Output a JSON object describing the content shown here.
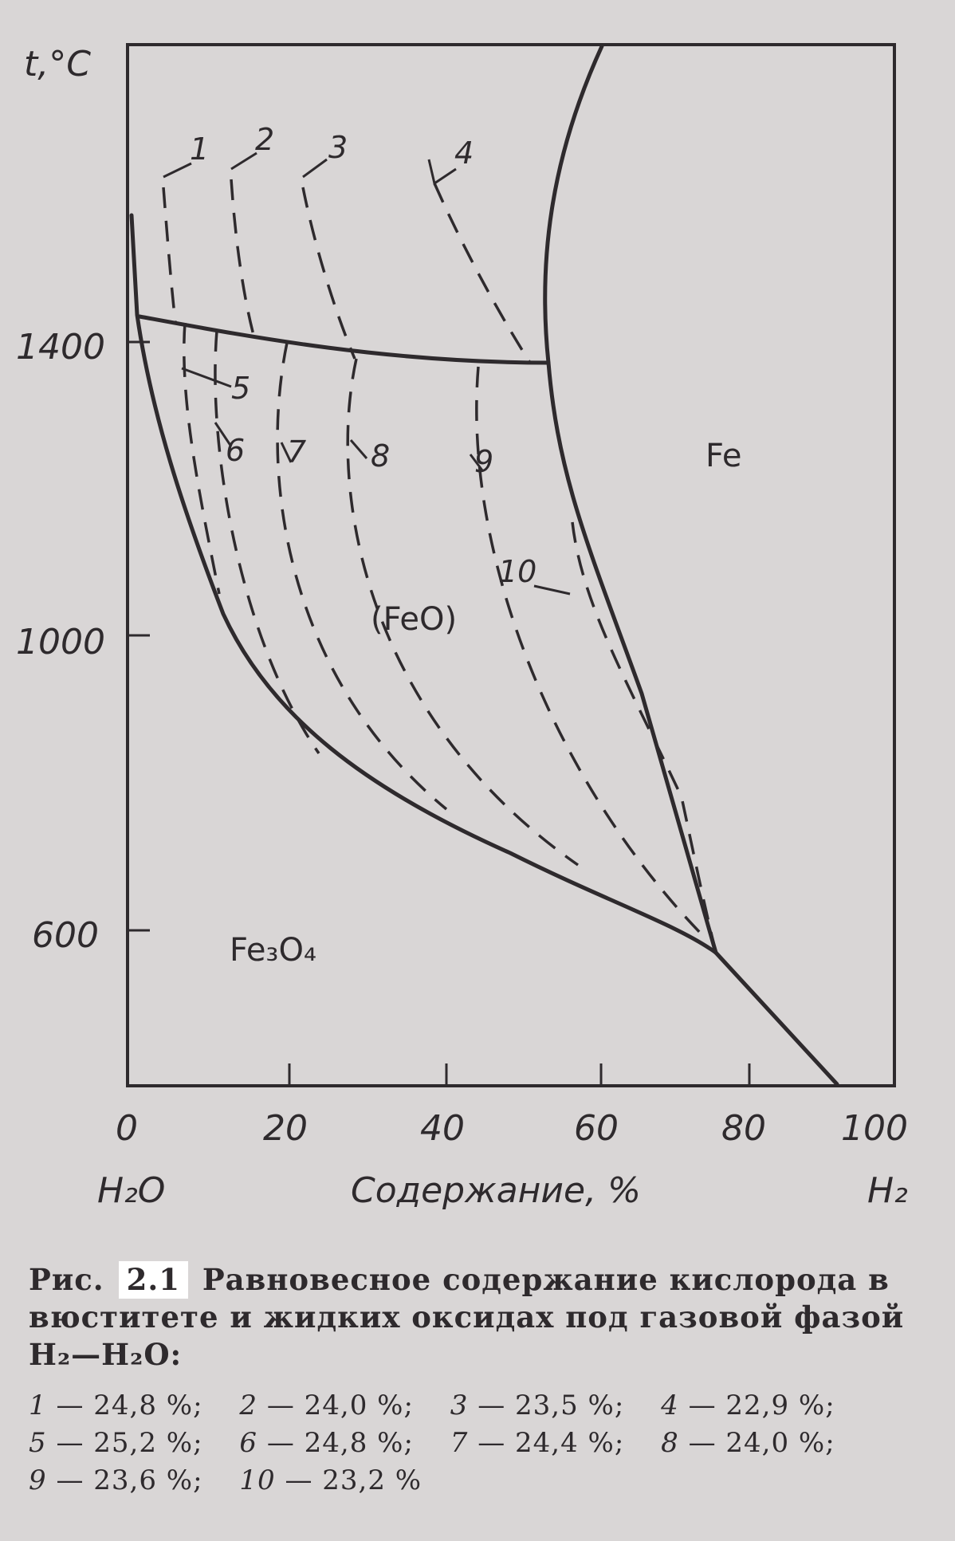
{
  "figure": {
    "y_axis_label": "t,°C",
    "x_axis_label": "Содержание, %",
    "x_left_label": "H₂O",
    "x_right_label": "H₂",
    "x_ticks": [
      "0",
      "20",
      "40",
      "60",
      "80",
      "100"
    ],
    "y_ticks": [
      "1400",
      "1000",
      "600"
    ],
    "region_fe": "Fe",
    "region_feo": "(FeO)",
    "region_fe3o4": "Fe₃O₄",
    "curve_numbers": [
      "1",
      "2",
      "3",
      "4",
      "5",
      "6",
      "7",
      "8",
      "9",
      "10"
    ]
  },
  "caption": {
    "prefix": "Рис.",
    "number": "2.1",
    "text": "Равновесное содержание кислорода в вюститете и жидких оксидах под газовой фазой H₂—H₂O:"
  },
  "legend": [
    {
      "num": "1",
      "value": "24,8 %"
    },
    {
      "num": "2",
      "value": "24,0 %"
    },
    {
      "num": "3",
      "value": "23,5 %"
    },
    {
      "num": "4",
      "value": "22,9 %"
    },
    {
      "num": "5",
      "value": "25,2 %"
    },
    {
      "num": "6",
      "value": "24,8 %"
    },
    {
      "num": "7",
      "value": "24,4 %"
    },
    {
      "num": "8",
      "value": "24,0 %"
    },
    {
      "num": "9",
      "value": "23,6 %"
    },
    {
      "num": "10",
      "value": "23,2 %"
    }
  ]
}
